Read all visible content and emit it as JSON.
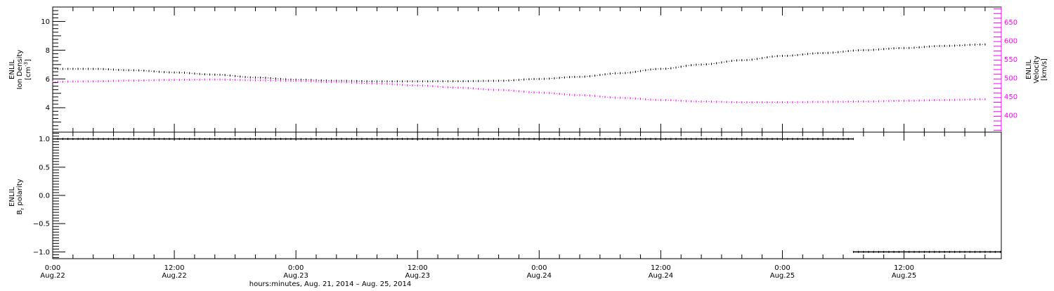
{
  "chart_data": [
    {
      "type": "scatter",
      "panel": "top",
      "ylabel_lines": [
        "ENLIL",
        "Ion Density"
      ],
      "yunit_prefix": "[cm",
      "yunit_sup": "-3",
      "yunit_suffix": "]",
      "ylim": [
        2.3,
        11.0
      ],
      "yticks": [
        4,
        6,
        8,
        10
      ],
      "yticklabels": [
        "4",
        "6",
        "8",
        "10"
      ],
      "ylabel2_lines": [
        "ENLIL",
        "Velocity"
      ],
      "yunit2": "[km/s]",
      "ylim2": [
        355,
        690
      ],
      "yticks2": [
        400,
        450,
        500,
        550,
        600,
        650
      ],
      "yticklabels2": [
        "400",
        "450",
        "500",
        "550",
        "600",
        "650"
      ],
      "series": [
        {
          "axis": "left",
          "color": "#000000",
          "points": [
            [
              0,
              6.7
            ],
            [
              4,
              6.7
            ],
            [
              8,
              6.6
            ],
            [
              12,
              6.45
            ],
            [
              16,
              6.3
            ],
            [
              20,
              6.1
            ],
            [
              24,
              5.95
            ],
            [
              28,
              5.87
            ],
            [
              32,
              5.83
            ],
            [
              36,
              5.83
            ],
            [
              40,
              5.84
            ],
            [
              44,
              5.87
            ],
            [
              48,
              6.0
            ],
            [
              52,
              6.15
            ],
            [
              56,
              6.4
            ],
            [
              60,
              6.7
            ],
            [
              64,
              7.0
            ],
            [
              68,
              7.3
            ],
            [
              72,
              7.6
            ],
            [
              76,
              7.8
            ],
            [
              80,
              8.0
            ],
            [
              84,
              8.15
            ],
            [
              88,
              8.3
            ],
            [
              92,
              8.4
            ]
          ]
        },
        {
          "axis": "right",
          "color": "#ff00ff",
          "points": [
            [
              0,
              490
            ],
            [
              4,
              491
            ],
            [
              8,
              493
            ],
            [
              12,
              495
            ],
            [
              16,
              496
            ],
            [
              20,
              494
            ],
            [
              24,
              492
            ],
            [
              28,
              489
            ],
            [
              32,
              485
            ],
            [
              36,
              480
            ],
            [
              40,
              474
            ],
            [
              44,
              468
            ],
            [
              48,
              461
            ],
            [
              52,
              454
            ],
            [
              56,
              447
            ],
            [
              60,
              441
            ],
            [
              64,
              437
            ],
            [
              68,
              435
            ],
            [
              72,
              435
            ],
            [
              76,
              436
            ],
            [
              80,
              437
            ],
            [
              84,
              439
            ],
            [
              88,
              441
            ],
            [
              92,
              443
            ]
          ]
        }
      ]
    },
    {
      "type": "scatter",
      "panel": "bottom",
      "ylabel_lines": [
        "ENLIL"
      ],
      "ylabel_b": "B",
      "ylabel_b_sub": "r",
      "ylabel_b_rest": " polarity",
      "ylim": [
        -1.12,
        1.12
      ],
      "yticks": [
        -1.0,
        -0.5,
        0.0,
        0.5,
        1.0
      ],
      "yticklabels": [
        "−1.0",
        "−0.5",
        "0.0",
        "0.5",
        "1.0"
      ],
      "series": [
        {
          "color": "#000000",
          "segments": [
            {
              "x": [
                0,
                79
              ],
              "value": 1.0
            },
            {
              "x": [
                79,
                93.6
              ],
              "value": -1.0
            }
          ]
        }
      ]
    }
  ],
  "x_axis": {
    "xlim": [
      0,
      93.6
    ],
    "major_ticks": [
      0,
      12,
      24,
      36,
      48,
      60,
      72,
      84
    ],
    "minor_tick_step": 2,
    "tick_time_labels": [
      "0:00",
      "12:00",
      "0:00",
      "12:00",
      "0:00",
      "12:00",
      "0:00",
      "12:00"
    ],
    "tick_date_labels": [
      "Aug.22",
      "Aug.22",
      "Aug.23",
      "Aug.23",
      "Aug.24",
      "Aug.24",
      "Aug.25",
      "Aug.25"
    ],
    "label": "hours:minutes, Aug. 21, 2014 – Aug. 25, 2014"
  },
  "colors": {
    "density": "#000000",
    "velocity": "#ff00ff",
    "frame": "#000000"
  }
}
